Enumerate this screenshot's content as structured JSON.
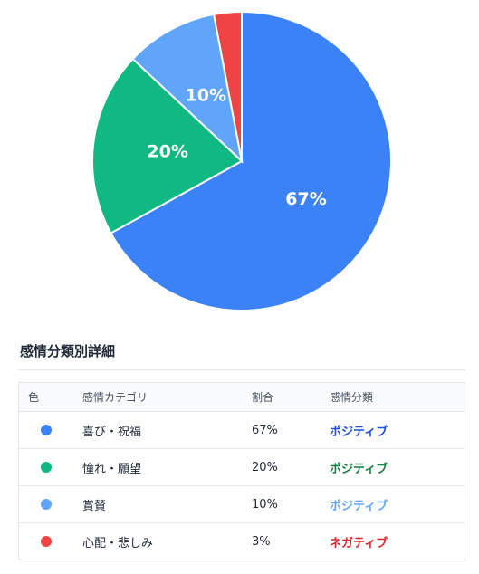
{
  "chart_data": {
    "type": "pie",
    "slices": [
      {
        "label": "喜び・祝福",
        "value": 67,
        "display": "67%",
        "color": "#3b82f6"
      },
      {
        "label": "憧れ・願望",
        "value": 20,
        "display": "20%",
        "color": "#10b981"
      },
      {
        "label": "賞賛",
        "value": 10,
        "display": "10%",
        "color": "#60a5fa"
      },
      {
        "label": "心配・悲しみ",
        "value": 3,
        "display": "",
        "color": "#ef4444"
      }
    ]
  },
  "details": {
    "title": "感情分類別詳細",
    "headers": {
      "color": "色",
      "category": "感情カテゴリ",
      "ratio": "割合",
      "type": "感情分類"
    },
    "rows": [
      {
        "color": "#3b82f6",
        "category": "喜び・祝福",
        "ratio": "67%",
        "type": "ポジティブ",
        "type_color": "#1d4ed8"
      },
      {
        "color": "#10b981",
        "category": "憧れ・願望",
        "ratio": "20%",
        "type": "ポジティブ",
        "type_color": "#15803d"
      },
      {
        "color": "#60a5fa",
        "category": "賞賛",
        "ratio": "10%",
        "type": "ポジティブ",
        "type_color": "#60a5fa"
      },
      {
        "color": "#ef4444",
        "category": "心配・悲しみ",
        "ratio": "3%",
        "type": "ネガティブ",
        "type_color": "#dc2626"
      }
    ]
  }
}
